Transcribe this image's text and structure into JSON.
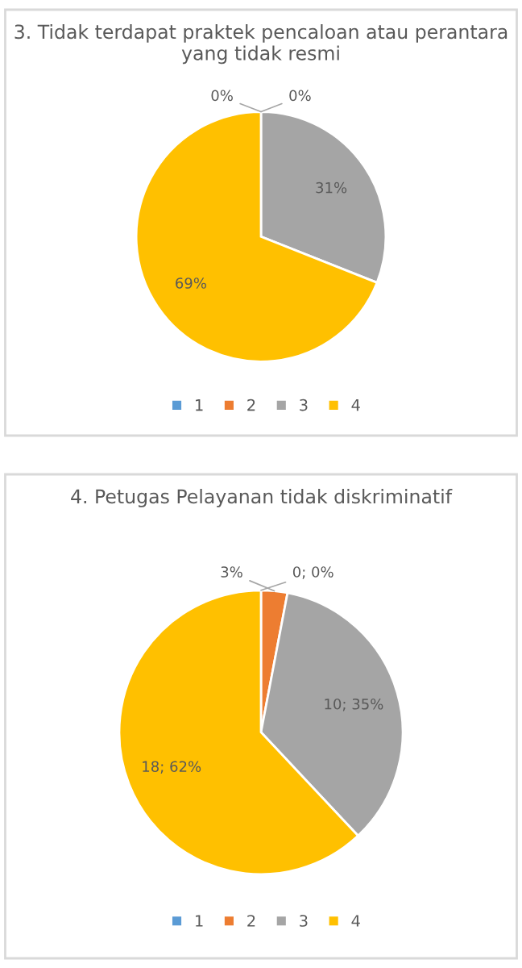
{
  "chart_data": [
    {
      "type": "pie",
      "title": "3. Tidak terdapat praktek pencaloan atau perantara yang tidak resmi",
      "categories": [
        "1",
        "2",
        "3",
        "4"
      ],
      "values": [
        0,
        0,
        31,
        69
      ],
      "colors": [
        "#5b9bd5",
        "#ed7d31",
        "#a5a5a5",
        "#ffc000"
      ],
      "value_labels": [
        "0%",
        "0%",
        "31%",
        "69%"
      ],
      "legend": "bottom"
    },
    {
      "type": "pie",
      "title": "4. Petugas Pelayanan tidak diskriminatif",
      "categories": [
        "1",
        "2",
        "3",
        "4"
      ],
      "values": [
        0,
        3,
        35,
        62
      ],
      "colors": [
        "#5b9bd5",
        "#ed7d31",
        "#a5a5a5",
        "#ffc000"
      ],
      "value_labels": [
        "0; 0%",
        "3%",
        "10; 35%",
        "18; 62%"
      ],
      "legend": "bottom"
    }
  ]
}
